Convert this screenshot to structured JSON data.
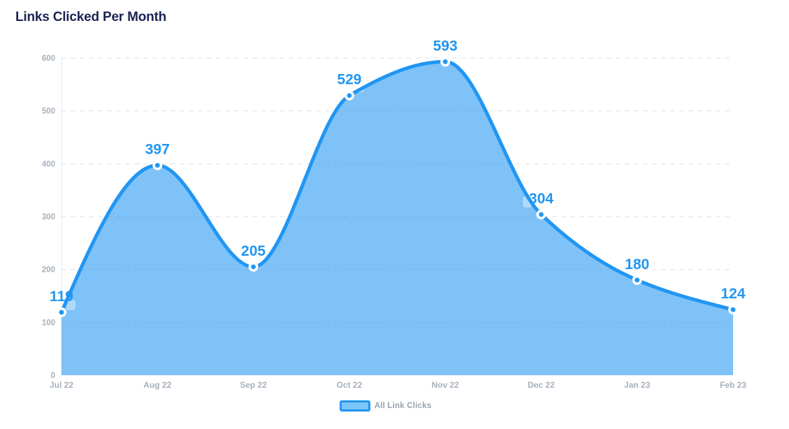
{
  "chart": {
    "title": "Links Clicked Per Month"
  },
  "legend": {
    "label": "All Link Clicks"
  },
  "colors": {
    "accent": "#2196f3",
    "area_fill": "#2196f3",
    "area_fill_opacity": 0.58,
    "marker_ring": "#ffffff",
    "grid": "#dcdfe4",
    "axis_line": "#e4e7eb",
    "axis_text": "#a6b0bc",
    "title_text": "#1d2454",
    "legend_text": "#98a2ae"
  },
  "chart_data": {
    "type": "area",
    "title": "Links Clicked Per Month",
    "categories": [
      "Jul 22",
      "Aug 22",
      "Sep 22",
      "Oct 22",
      "Nov 22",
      "Dec 22",
      "Jan 23",
      "Feb 23"
    ],
    "series": [
      {
        "name": "All Link Clicks",
        "values": [
          119,
          397,
          205,
          529,
          593,
          304,
          180,
          124
        ]
      }
    ],
    "xlabel": "",
    "ylabel": "",
    "ylim": [
      0,
      600
    ],
    "y_ticks": [
      0,
      100,
      200,
      300,
      400,
      500,
      600
    ],
    "grid": "horizontal-dashed",
    "curve": "smooth-monotone",
    "data_labels": true,
    "legend_position": "bottom"
  }
}
